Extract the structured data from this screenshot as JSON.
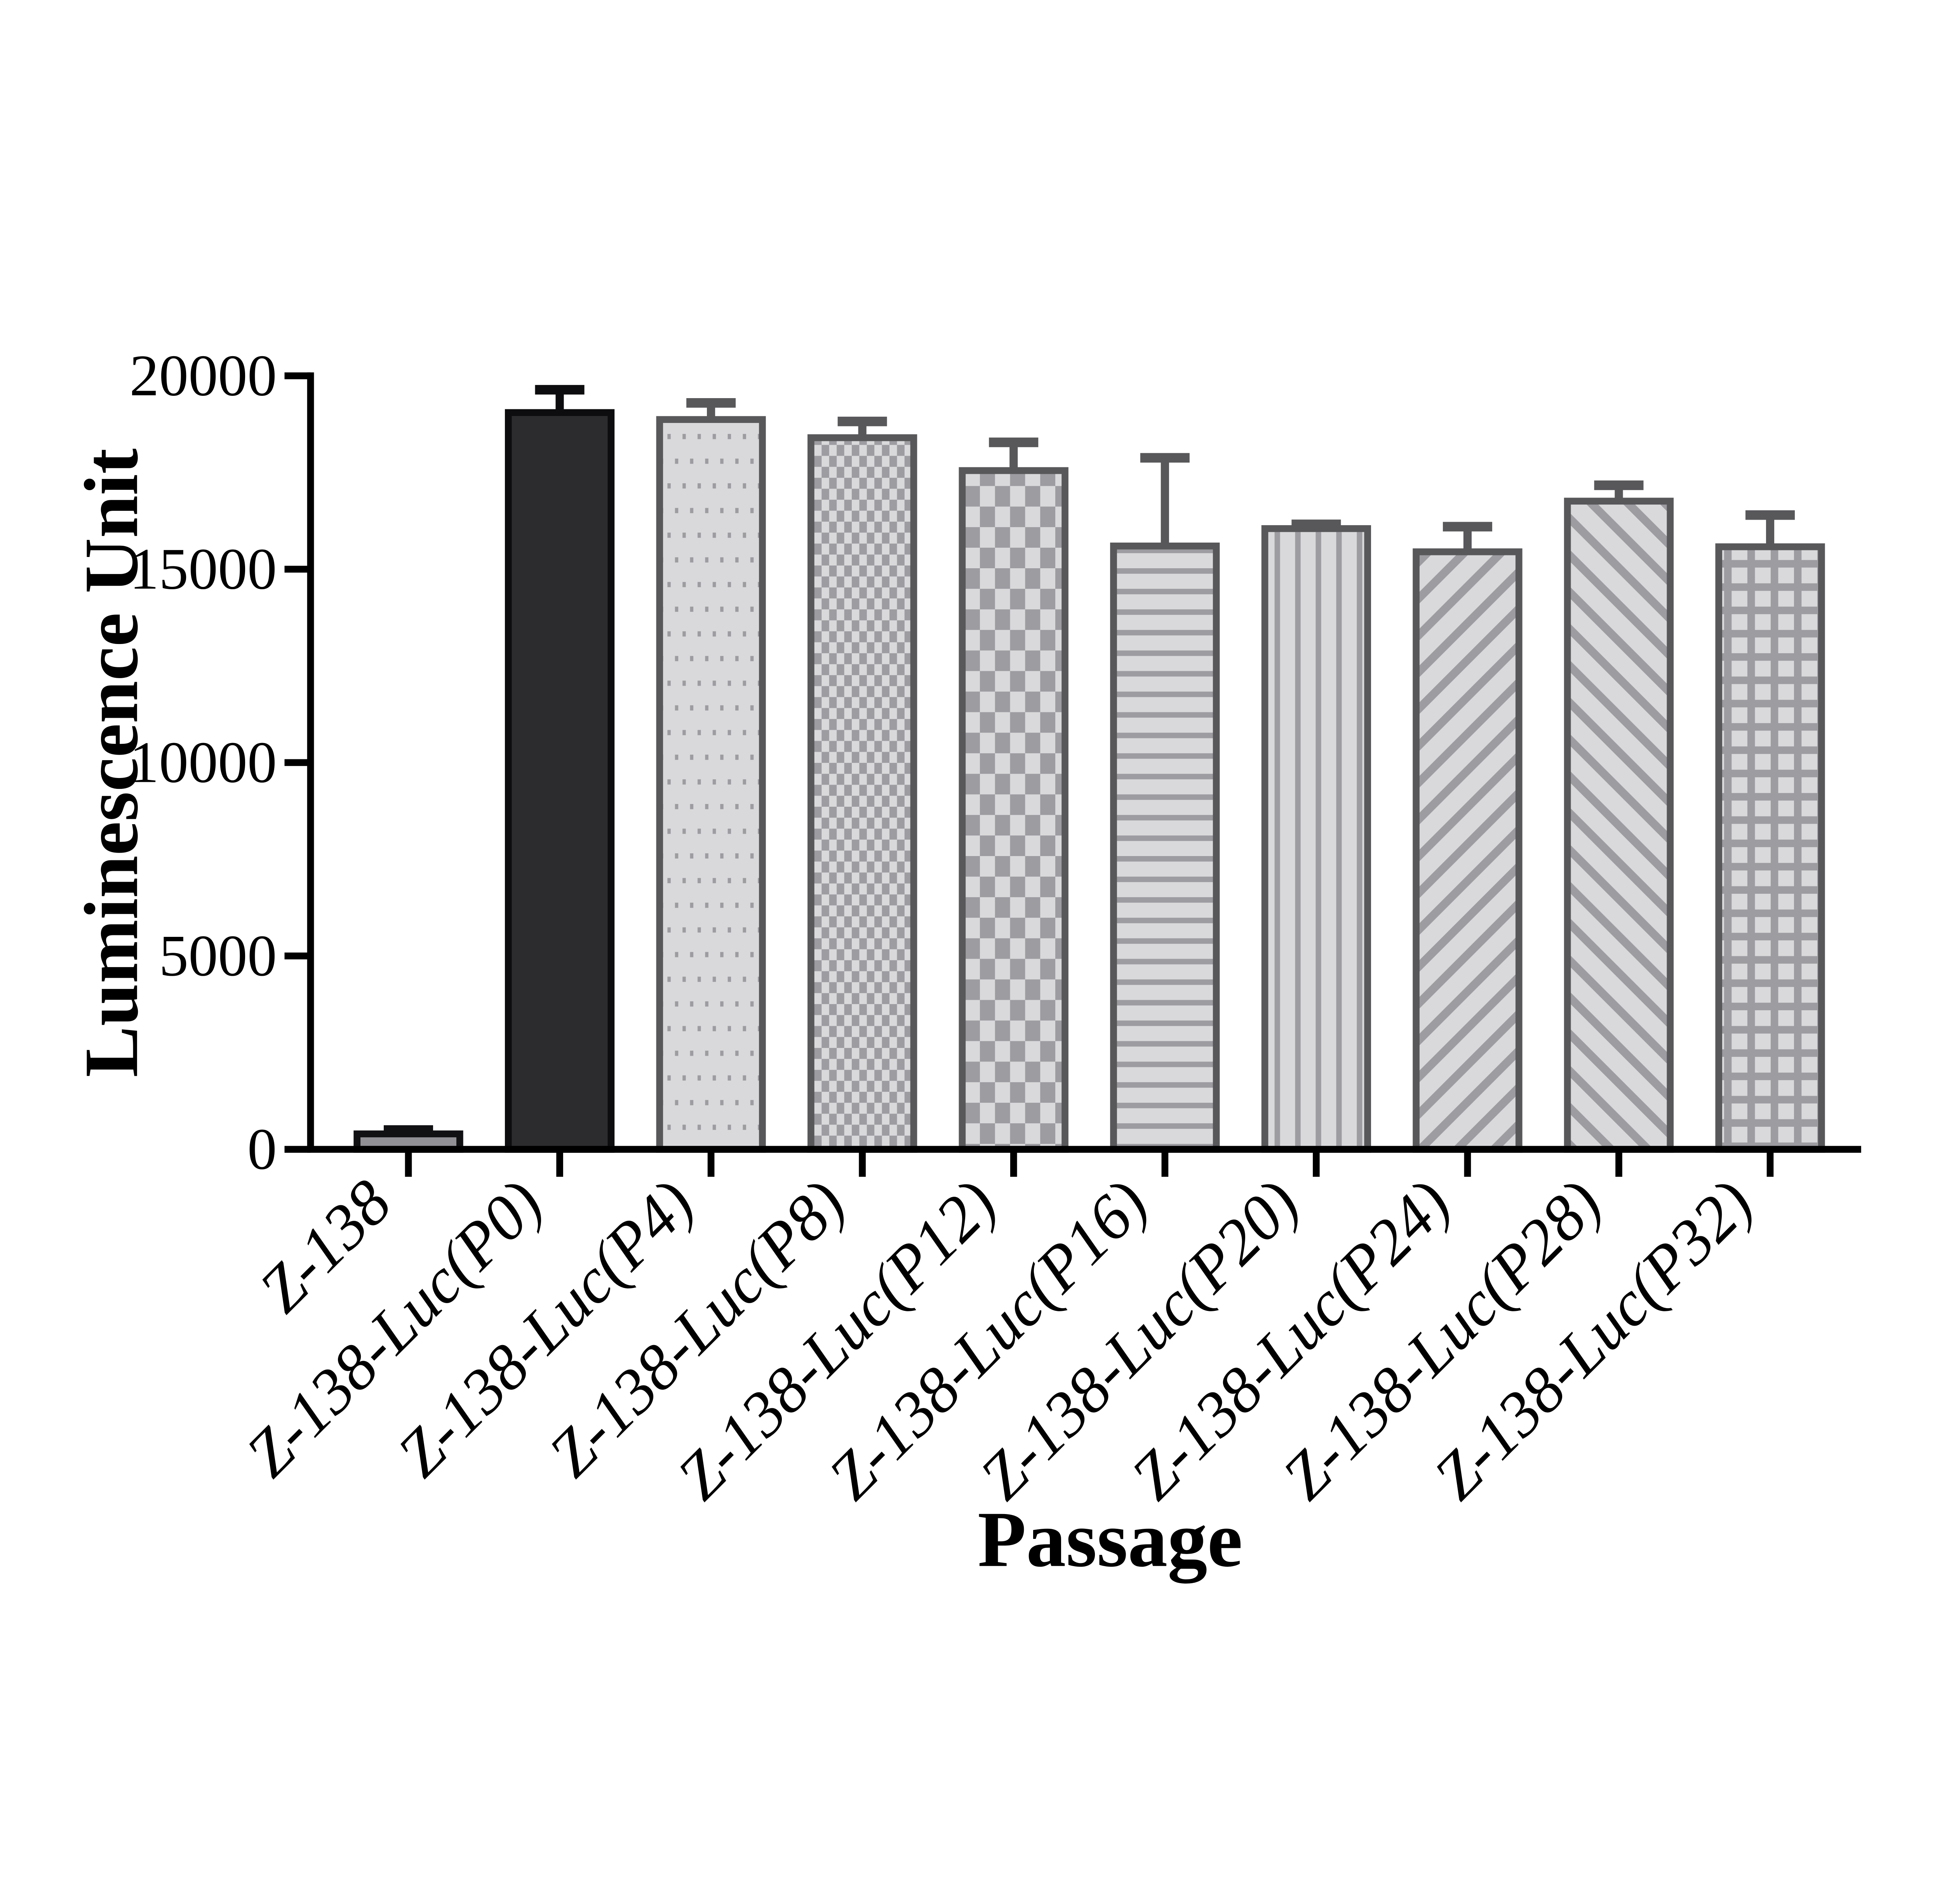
{
  "figure": {
    "background": "#ffffff"
  },
  "chart_data": {
    "type": "bar",
    "title": "",
    "xlabel": "Passage",
    "ylabel": "Luminescence Unit",
    "categories": [
      "Z-138",
      "Z-138-Luc(P0)",
      "Z-138-Luc(P4)",
      "Z-138-Luc(P8)",
      "Z-138-Luc(P12)",
      "Z-138-Luc(P16)",
      "Z-138-Luc(P20)",
      "Z-138-Luc(P24)",
      "Z-138-Luc(P28)",
      "Z-138-Luc(P32)"
    ],
    "values": [
      400,
      19050,
      18870,
      18400,
      17550,
      15600,
      16050,
      15450,
      16760,
      15580
    ],
    "errors_upper": [
      100,
      590,
      430,
      420,
      730,
      2280,
      110,
      650,
      410,
      820
    ],
    "ylim": [
      0,
      20000
    ],
    "yticks": [
      0,
      5000,
      10000,
      15000,
      20000
    ],
    "ytick_labels": [
      "0",
      "5000",
      "10000",
      "15000",
      "20000"
    ],
    "grid": false,
    "legend": "none",
    "bar_patterns": [
      "solid",
      "solid",
      "dots",
      "checker-fine",
      "checker-coarse",
      "hlines",
      "vlines",
      "diag-up",
      "diag-down",
      "grid"
    ],
    "bar_fill_colors": [
      "#919195",
      "#2c2c2e",
      "",
      "",
      "",
      "",
      "",
      "",
      "",
      ""
    ],
    "bar_outline_colors": [
      "#111114",
      "#0d0d0f",
      "#58585b",
      "#58585b",
      "#58585b",
      "#58585b",
      "#58585b",
      "#58585b",
      "#58585b",
      "#58585b"
    ],
    "colors": {
      "axis": "#000000",
      "text": "#000000",
      "pattern_bg": "#d9d9db",
      "pattern_fg": "#9c9ca1"
    }
  }
}
